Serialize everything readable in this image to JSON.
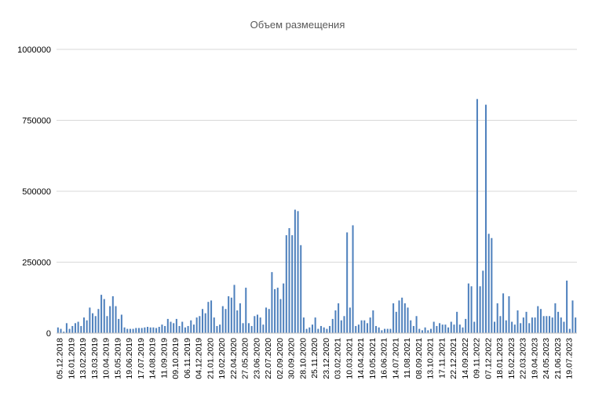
{
  "chart_data": {
    "type": "bar",
    "title": "Объем размещения",
    "xlabel": "",
    "ylabel": "",
    "ylim": [
      0,
      1000000
    ],
    "yticks": [
      "0",
      "250000",
      "500000",
      "750000",
      "1000000"
    ],
    "grid": "horizontal",
    "legend": "none",
    "bar_color": "#4f81bd",
    "x_tick_labels": [
      "05.12.2018",
      "16.01.2019",
      "13.02.2019",
      "13.03.2019",
      "10.04.2019",
      "15.05.2019",
      "19.06.2019",
      "17.07.2019",
      "14.08.2019",
      "11.09.2019",
      "09.10.2019",
      "06.11.2019",
      "04.12.2019",
      "21.01.2020",
      "19.02.2020",
      "22.04.2020",
      "27.05.2020",
      "23.06.2020",
      "22.07.2020",
      "02.09.2020",
      "30.09.2020",
      "28.10.2020",
      "25.11.2020",
      "23.12.2020",
      "03.02.2021",
      "10.03.2021",
      "14.04.2021",
      "19.05.2021",
      "16.06.2021",
      "14.07.2021",
      "11.08.2021",
      "08.09.2021",
      "13.10.2021",
      "17.11.2021",
      "22.12.2021",
      "14.09.2022",
      "09.11.2022",
      "07.12.2022",
      "18.01.2023",
      "15.02.2023",
      "22.03.2023",
      "19.04.2023",
      "24.05.2023",
      "21.06.2023",
      "19.07.2023"
    ],
    "values": [
      20000,
      15000,
      5000,
      35000,
      15000,
      25000,
      35000,
      40000,
      25000,
      55000,
      45000,
      90000,
      70000,
      60000,
      85000,
      135000,
      120000,
      60000,
      95000,
      130000,
      95000,
      50000,
      65000,
      20000,
      15000,
      15000,
      15000,
      18000,
      18000,
      18000,
      20000,
      22000,
      20000,
      20000,
      18000,
      22000,
      30000,
      25000,
      50000,
      40000,
      35000,
      50000,
      25000,
      40000,
      20000,
      25000,
      45000,
      30000,
      55000,
      60000,
      85000,
      70000,
      110000,
      115000,
      55000,
      25000,
      30000,
      95000,
      85000,
      130000,
      125000,
      170000,
      80000,
      105000,
      35000,
      160000,
      35000,
      25000,
      60000,
      65000,
      55000,
      30000,
      90000,
      85000,
      215000,
      155000,
      160000,
      120000,
      175000,
      345000,
      370000,
      345000,
      435000,
      430000,
      310000,
      55000,
      15000,
      20000,
      30000,
      55000,
      15000,
      25000,
      20000,
      15000,
      25000,
      50000,
      80000,
      105000,
      45000,
      60000,
      355000,
      90000,
      380000,
      25000,
      30000,
      45000,
      45000,
      35000,
      55000,
      80000,
      25000,
      20000,
      10000,
      15000,
      15000,
      15000,
      105000,
      75000,
      115000,
      125000,
      105000,
      90000,
      45000,
      25000,
      60000,
      15000,
      10000,
      20000,
      10000,
      15000,
      40000,
      25000,
      35000,
      30000,
      30000,
      20000,
      40000,
      30000,
      75000,
      30000,
      20000,
      50000,
      175000,
      165000,
      40000,
      825000,
      165000,
      220000,
      805000,
      350000,
      335000,
      40000,
      105000,
      60000,
      140000,
      45000,
      130000,
      40000,
      30000,
      80000,
      35000,
      55000,
      75000,
      35000,
      55000,
      55000,
      95000,
      85000,
      60000,
      60000,
      60000,
      55000,
      105000,
      75000,
      55000,
      40000,
      185000,
      15000,
      115000,
      55000
    ]
  }
}
